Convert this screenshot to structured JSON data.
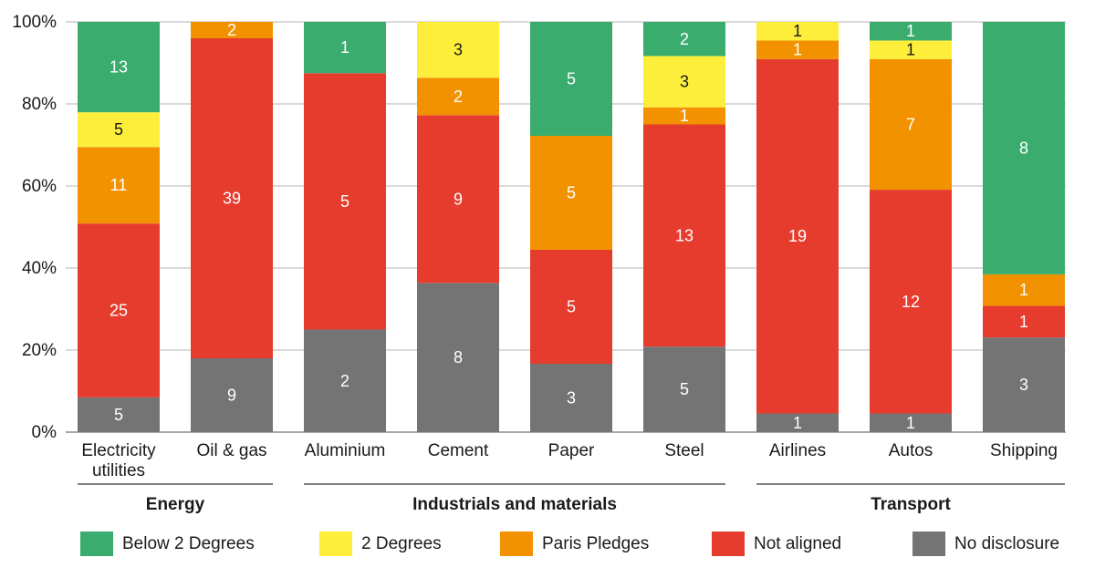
{
  "chart_data": {
    "type": "bar",
    "stacked": true,
    "normalized": true,
    "title": "",
    "xlabel": "",
    "ylabel": "",
    "ylim": [
      0,
      100
    ],
    "y_ticks": [
      "0%",
      "20%",
      "40%",
      "60%",
      "80%",
      "100%"
    ],
    "grid": true,
    "legend_position": "bottom",
    "categories": [
      [
        "Electricity",
        "utilities"
      ],
      [
        "Oil & gas"
      ],
      [
        "Aluminium"
      ],
      [
        "Cement"
      ],
      [
        "Paper"
      ],
      [
        "Steel"
      ],
      [
        "Airlines"
      ],
      [
        "Autos"
      ],
      [
        "Shipping"
      ]
    ],
    "groups": [
      {
        "label": "Energy",
        "start": 0,
        "end": 1
      },
      {
        "label": "Industrials and materials",
        "start": 2,
        "end": 5
      },
      {
        "label": "Transport",
        "start": 6,
        "end": 8
      }
    ],
    "series": [
      {
        "name": "No disclosure",
        "color": "#747474",
        "values": [
          5,
          9,
          2,
          8,
          3,
          5,
          1,
          1,
          3
        ]
      },
      {
        "name": "Not aligned",
        "color": "#e53c2e",
        "values": [
          25,
          39,
          5,
          9,
          5,
          13,
          19,
          12,
          1
        ]
      },
      {
        "name": "Paris Pledges",
        "color": "#f29200",
        "values": [
          11,
          2,
          0,
          2,
          5,
          1,
          1,
          7,
          1
        ]
      },
      {
        "name": "2 Degrees",
        "color": "#fcee3b",
        "values": [
          5,
          0,
          0,
          3,
          0,
          3,
          1,
          1,
          0
        ]
      },
      {
        "name": "Below 2 Degrees",
        "color": "#3aad6e",
        "values": [
          13,
          0,
          1,
          0,
          5,
          2,
          0,
          1,
          8
        ]
      }
    ],
    "legend_order": [
      "Below 2 Degrees",
      "2 Degrees",
      "Paris Pledges",
      "Not aligned",
      "No disclosure"
    ]
  }
}
